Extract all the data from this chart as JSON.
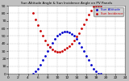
{
  "title": "Sun Altitude Angle & Sun Incidence Angle on PV Panels",
  "legend_labels": [
    "Sun Altitude",
    "Sun Incidence"
  ],
  "line_colors": [
    "#0000cc",
    "#cc0000"
  ],
  "background_color": "#c0c0c0",
  "plot_bg_color": "#ffffff",
  "grid_color": "#888888",
  "text_color": "#000000",
  "xlim": [
    0,
    24
  ],
  "ylim": [
    0,
    90
  ],
  "x_ticks": [
    0,
    2,
    4,
    6,
    8,
    10,
    12,
    14,
    16,
    18,
    20,
    22,
    24
  ],
  "y_ticks": [
    0,
    10,
    20,
    30,
    40,
    50,
    60,
    70,
    80,
    90
  ],
  "sun_altitude_x": [
    5.0,
    5.5,
    6.0,
    6.5,
    7.0,
    7.5,
    8.0,
    8.5,
    9.0,
    9.5,
    10.0,
    10.5,
    11.0,
    11.5,
    12.0,
    12.5,
    13.0,
    13.5,
    14.0,
    14.5,
    15.0,
    15.5,
    16.0,
    16.5,
    17.0,
    17.5,
    18.0,
    18.5,
    19.0
  ],
  "sun_altitude_y": [
    0,
    3,
    7,
    12,
    18,
    24,
    30,
    36,
    41,
    46,
    50,
    53,
    55,
    56,
    56,
    55,
    53,
    50,
    46,
    41,
    36,
    30,
    24,
    18,
    12,
    7,
    3,
    0,
    0
  ],
  "sun_incidence_x": [
    5.0,
    5.5,
    6.0,
    6.5,
    7.0,
    7.5,
    8.0,
    8.5,
    9.0,
    9.5,
    10.0,
    10.5,
    11.0,
    11.5,
    12.0,
    12.5,
    13.0,
    13.5,
    14.0,
    14.5,
    15.0,
    15.5,
    16.0,
    16.5,
    17.0,
    17.5,
    18.0,
    18.5,
    19.0
  ],
  "sun_incidence_y": [
    80,
    72,
    64,
    57,
    50,
    44,
    39,
    35,
    32,
    30,
    29,
    29,
    30,
    32,
    34,
    37,
    40,
    44,
    49,
    54,
    60,
    66,
    72,
    78,
    84,
    89,
    90,
    90,
    90
  ],
  "marker_size": 2.0,
  "tick_fontsize": 3.2,
  "title_fontsize": 3.0,
  "legend_fontsize": 2.8
}
